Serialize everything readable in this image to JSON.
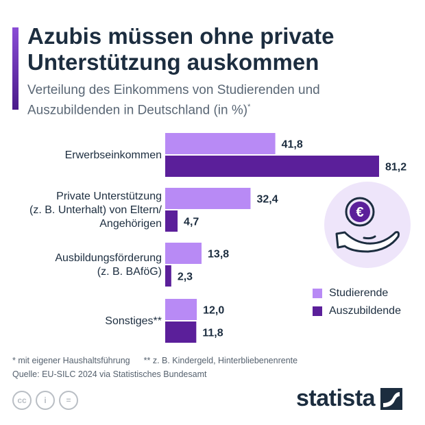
{
  "header": {
    "title": "Azubis müssen ohne private Unterstützung auskommen",
    "subtitle": "Verteilung des Einkommens von Studierenden und Auszubildenden in Deutschland (in %)",
    "subtitle_mark": "*"
  },
  "chart_data": {
    "type": "bar",
    "orientation": "horizontal",
    "categories": [
      [
        "Erwerbseinkommen"
      ],
      [
        "Private Unterstützung",
        "(z. B. Unterhalt) von Eltern/",
        "Angehörigen"
      ],
      [
        "Ausbildungsförderung",
        "(z. B. BAföG)"
      ],
      [
        "Sonstiges**"
      ]
    ],
    "series": [
      {
        "name": "Studierende",
        "values": [
          41.8,
          32.4,
          13.8,
          12.0
        ],
        "labels": [
          "41,8",
          "32,4",
          "13,8",
          "12,0"
        ],
        "color": "#b88af5"
      },
      {
        "name": "Auszubildende",
        "values": [
          81.2,
          4.7,
          2.3,
          11.8
        ],
        "labels": [
          "81,2",
          "4,7",
          "2,3",
          "11,8"
        ],
        "color": "#5b1f9a"
      }
    ],
    "xlim": [
      0,
      81.2
    ],
    "grid": false,
    "legend_position": "right"
  },
  "legend": {
    "items": [
      {
        "label": "Studierende",
        "color": "#b88af5"
      },
      {
        "label": "Auszubildende",
        "color": "#5b1f9a"
      }
    ]
  },
  "icon": {
    "name": "euro-hand-icon",
    "symbol": "€"
  },
  "notes": {
    "footnote1": "* mit eigener Haushaltsführung",
    "footnote2": "** z. B. Kindergeld, Hinterbliebenenrente",
    "source": "Quelle: EU-SILC 2024 via Statistisches Bundesamt"
  },
  "footer": {
    "license_icons": [
      "cc-icon",
      "by-icon",
      "nd-icon"
    ],
    "license_glyphs": [
      "cc",
      "i",
      "="
    ],
    "brand": "statista"
  }
}
